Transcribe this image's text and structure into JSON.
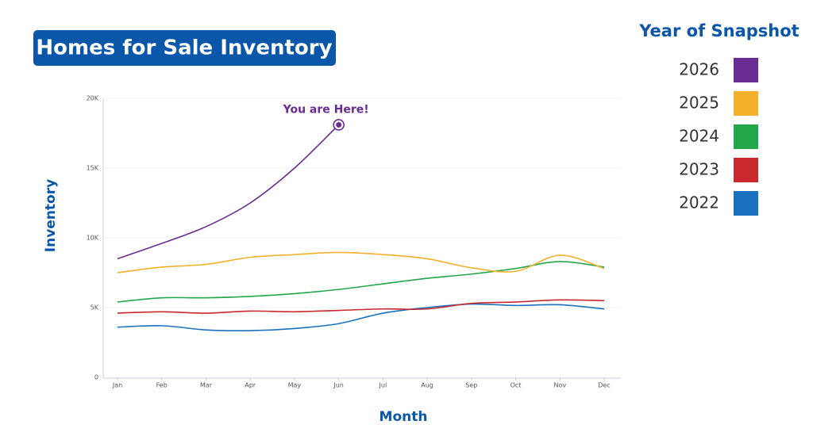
{
  "chart_data": {
    "type": "line",
    "title": "Homes for Sale Inventory",
    "xlabel": "Month",
    "ylabel": "Inventory",
    "legend_title": "Year of Snapshot",
    "annotation": "You are Here!",
    "categories": [
      "Jan",
      "Feb",
      "Mar",
      "Apr",
      "May",
      "Jun",
      "Jul",
      "Aug",
      "Sep",
      "Oct",
      "Nov",
      "Dec"
    ],
    "ylim": [
      0,
      20000
    ],
    "yticks": [
      0,
      {
        "value": 5000,
        "label": "5K"
      },
      {
        "value": 10000,
        "label": "10K"
      },
      {
        "value": 15000,
        "label": "15K"
      },
      {
        "value": 20000,
        "label": "20K"
      }
    ],
    "grid": true,
    "legend": "right",
    "series": [
      {
        "name": "2026",
        "color": "#6a2c91",
        "values": [
          8500,
          9600,
          10800,
          12500,
          15000,
          18100,
          null,
          null,
          null,
          null,
          null,
          null
        ]
      },
      {
        "name": "2025",
        "color": "#f4b02a",
        "values": [
          7500,
          7900,
          8100,
          8600,
          8800,
          8950,
          8800,
          8500,
          7850,
          7600,
          8750,
          7800
        ]
      },
      {
        "name": "2024",
        "color": "#22a84a",
        "values": [
          5400,
          5700,
          5700,
          5800,
          6000,
          6300,
          6700,
          7100,
          7400,
          7800,
          8300,
          7900
        ]
      },
      {
        "name": "2023",
        "color": "#c9282f",
        "values": [
          4600,
          4700,
          4600,
          4750,
          4700,
          4800,
          4900,
          4900,
          5300,
          5400,
          5550,
          5500
        ]
      },
      {
        "name": "2022",
        "color": "#1a72be",
        "values": [
          3600,
          3700,
          3400,
          3350,
          3500,
          3850,
          4600,
          5000,
          5250,
          5150,
          5200,
          4900
        ]
      }
    ]
  }
}
